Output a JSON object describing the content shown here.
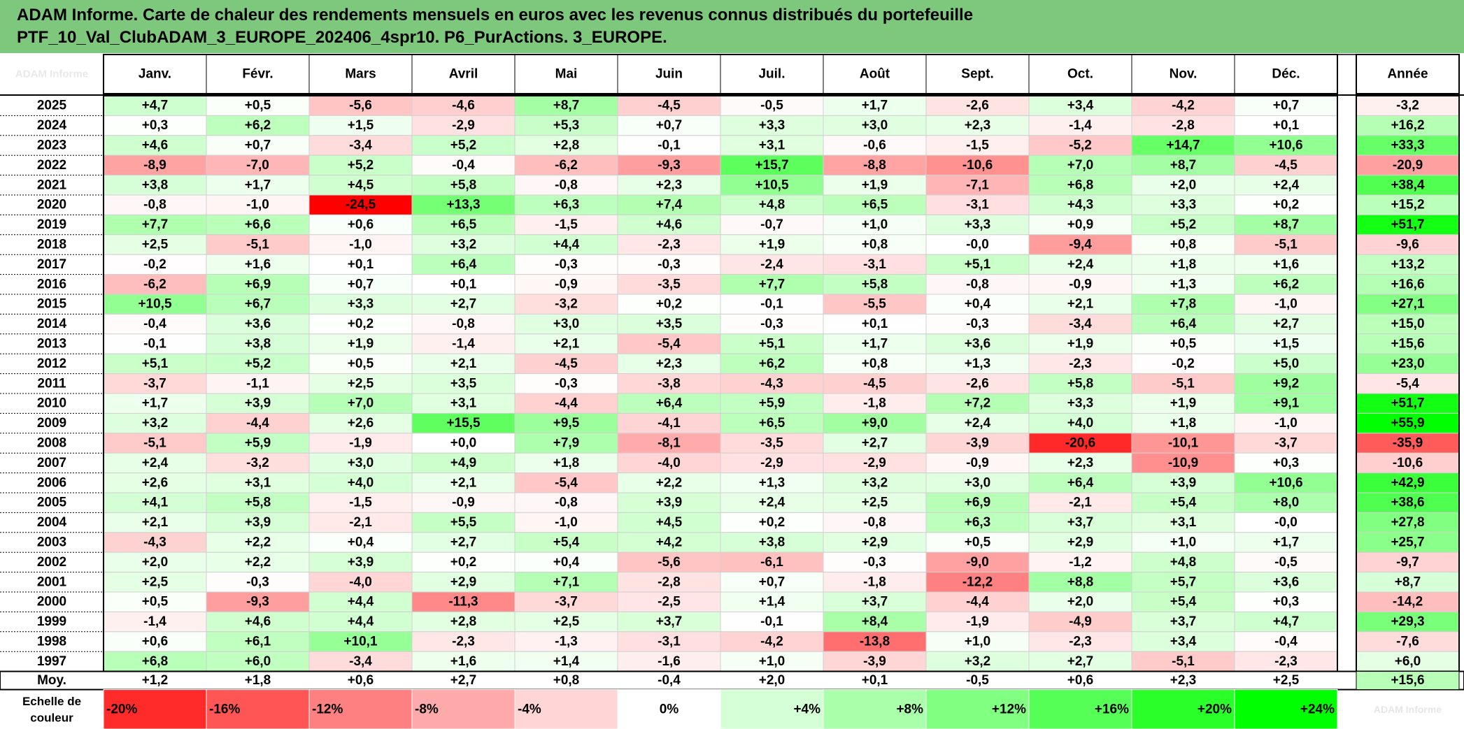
{
  "title": {
    "line1": "ADAM Informe. Carte de chaleur des rendements mensuels en euros avec les revenus connus distribués du portefeuille",
    "line2": "PTF_10_Val_ClubADAM_3_EUROPE_202406_4spr10. P6_PurActions. 3_EUROPE."
  },
  "watermark": "ADAM Informe",
  "colors": {
    "title_bg": "#7dc87d",
    "max_red": "#ff0000",
    "max_green": "#00ff00",
    "neutral": "#ffffff"
  },
  "chart_data": {
    "type": "heatmap",
    "months": [
      "Janv.",
      "Févr.",
      "Mars",
      "Avril",
      "Mai",
      "Juin",
      "Juil.",
      "Août",
      "Sept.",
      "Oct.",
      "Nov.",
      "Déc."
    ],
    "year_col_label": "Année",
    "rows": [
      {
        "year": "2025",
        "values": [
          "+4,7",
          "+0,5",
          "-5,6",
          "-4,6",
          "+8,7",
          "-4,5",
          "-0,5",
          "+1,7",
          "-2,6",
          "+3,4",
          "-4,2",
          "+0,7"
        ],
        "annual": "-3,2"
      },
      {
        "year": "2024",
        "values": [
          "+0,3",
          "+6,2",
          "+1,5",
          "-2,9",
          "+5,3",
          "+0,7",
          "+3,3",
          "+3,0",
          "+2,3",
          "-1,4",
          "-2,8",
          "+0,1"
        ],
        "annual": "+16,2"
      },
      {
        "year": "2023",
        "values": [
          "+4,6",
          "+0,7",
          "-3,4",
          "+5,2",
          "+2,8",
          "-0,1",
          "+3,1",
          "-0,6",
          "-1,5",
          "-5,2",
          "+14,7",
          "+10,6"
        ],
        "annual": "+33,3"
      },
      {
        "year": "2022",
        "values": [
          "-8,9",
          "-7,0",
          "+5,2",
          "-0,4",
          "-6,2",
          "-9,3",
          "+15,7",
          "-8,8",
          "-10,6",
          "+7,0",
          "+8,7",
          "-4,5"
        ],
        "annual": "-20,9"
      },
      {
        "year": "2021",
        "values": [
          "+3,8",
          "+1,7",
          "+4,5",
          "+5,8",
          "-0,8",
          "+2,3",
          "+10,5",
          "+1,9",
          "-7,1",
          "+6,8",
          "+2,0",
          "+2,4"
        ],
        "annual": "+38,4"
      },
      {
        "year": "2020",
        "values": [
          "-0,8",
          "-1,0",
          "-24,5",
          "+13,3",
          "+6,3",
          "+7,4",
          "+4,8",
          "+6,5",
          "-3,1",
          "+4,3",
          "+3,3",
          "+0,2"
        ],
        "annual": "+15,2"
      },
      {
        "year": "2019",
        "values": [
          "+7,7",
          "+6,6",
          "+0,6",
          "+6,5",
          "-1,5",
          "+4,6",
          "-0,7",
          "+1,0",
          "+3,3",
          "+0,9",
          "+5,2",
          "+8,7"
        ],
        "annual": "+51,7"
      },
      {
        "year": "2018",
        "values": [
          "+2,5",
          "-5,1",
          "-1,0",
          "+3,2",
          "+4,4",
          "-2,3",
          "+1,9",
          "+0,8",
          "-0,0",
          "-9,4",
          "+0,8",
          "-5,1"
        ],
        "annual": "-9,6"
      },
      {
        "year": "2017",
        "values": [
          "-0,2",
          "+1,6",
          "+0,1",
          "+6,4",
          "-0,3",
          "-0,3",
          "-2,4",
          "-3,1",
          "+5,1",
          "+2,4",
          "+1,8",
          "+1,6"
        ],
        "annual": "+13,2"
      },
      {
        "year": "2016",
        "values": [
          "-6,2",
          "+6,9",
          "+0,7",
          "+0,1",
          "-0,9",
          "-3,5",
          "+7,7",
          "+5,8",
          "-0,8",
          "-0,9",
          "+1,3",
          "+6,2"
        ],
        "annual": "+16,6"
      },
      {
        "year": "2015",
        "values": [
          "+10,5",
          "+6,7",
          "+3,3",
          "+2,7",
          "-3,2",
          "+0,2",
          "-0,1",
          "-5,5",
          "+0,4",
          "+2,1",
          "+7,8",
          "-1,0"
        ],
        "annual": "+27,1"
      },
      {
        "year": "2014",
        "values": [
          "-0,4",
          "+3,6",
          "+0,2",
          "-0,8",
          "+3,0",
          "+3,5",
          "-0,3",
          "+0,1",
          "-0,3",
          "-3,4",
          "+6,4",
          "+2,7"
        ],
        "annual": "+15,0"
      },
      {
        "year": "2013",
        "values": [
          "-0,1",
          "+3,8",
          "+1,9",
          "-1,4",
          "+2,1",
          "-5,4",
          "+5,1",
          "+1,7",
          "+3,6",
          "+1,9",
          "+0,5",
          "+1,5"
        ],
        "annual": "+15,6"
      },
      {
        "year": "2012",
        "values": [
          "+5,1",
          "+5,2",
          "+0,5",
          "+2,1",
          "-4,5",
          "+2,3",
          "+6,2",
          "+0,8",
          "+1,3",
          "-2,3",
          "-0,2",
          "+5,0"
        ],
        "annual": "+23,0"
      },
      {
        "year": "2011",
        "values": [
          "-3,7",
          "-1,1",
          "+2,5",
          "+3,5",
          "-0,3",
          "-3,8",
          "-4,3",
          "-4,5",
          "-2,6",
          "+5,8",
          "-5,1",
          "+9,2"
        ],
        "annual": "-5,4"
      },
      {
        "year": "2010",
        "values": [
          "+1,7",
          "+3,9",
          "+7,0",
          "+3,1",
          "-4,4",
          "+6,4",
          "+5,9",
          "-1,8",
          "+7,2",
          "+3,3",
          "+1,9",
          "+9,1"
        ],
        "annual": "+51,7"
      },
      {
        "year": "2009",
        "values": [
          "+3,2",
          "-4,4",
          "+2,6",
          "+15,5",
          "+9,5",
          "-4,1",
          "+6,5",
          "+9,0",
          "+2,4",
          "+4,0",
          "+1,8",
          "-1,0"
        ],
        "annual": "+55,9"
      },
      {
        "year": "2008",
        "values": [
          "-5,1",
          "+5,9",
          "-1,9",
          "+0,0",
          "+7,9",
          "-8,1",
          "-3,5",
          "+2,7",
          "-3,9",
          "-20,6",
          "-10,1",
          "-3,7"
        ],
        "annual": "-35,9"
      },
      {
        "year": "2007",
        "values": [
          "+2,4",
          "-3,2",
          "+3,0",
          "+4,9",
          "+1,8",
          "-4,0",
          "-2,9",
          "-2,9",
          "-0,9",
          "+2,3",
          "-10,9",
          "+0,3"
        ],
        "annual": "-10,6"
      },
      {
        "year": "2006",
        "values": [
          "+2,6",
          "+3,1",
          "+4,0",
          "+2,1",
          "-5,4",
          "+2,2",
          "+1,3",
          "+3,2",
          "+3,0",
          "+6,4",
          "+3,9",
          "+10,6"
        ],
        "annual": "+42,9"
      },
      {
        "year": "2005",
        "values": [
          "+4,1",
          "+5,8",
          "-1,5",
          "-0,9",
          "-0,8",
          "+3,9",
          "+2,4",
          "+2,5",
          "+6,9",
          "-2,1",
          "+5,4",
          "+8,0"
        ],
        "annual": "+38,6"
      },
      {
        "year": "2004",
        "values": [
          "+2,1",
          "+3,9",
          "-2,1",
          "+5,5",
          "-1,0",
          "+4,5",
          "+0,2",
          "-0,8",
          "+6,3",
          "+3,7",
          "+3,1",
          "-0,0"
        ],
        "annual": "+27,8"
      },
      {
        "year": "2003",
        "values": [
          "-4,3",
          "+2,2",
          "+0,4",
          "+2,7",
          "+5,4",
          "+4,2",
          "+3,8",
          "+2,9",
          "+0,5",
          "+2,9",
          "+1,0",
          "+1,7"
        ],
        "annual": "+25,7"
      },
      {
        "year": "2002",
        "values": [
          "+2,0",
          "+2,2",
          "+3,9",
          "+0,2",
          "+0,4",
          "-5,6",
          "-6,1",
          "-0,3",
          "-9,0",
          "-1,2",
          "+4,8",
          "-0,5"
        ],
        "annual": "-9,7"
      },
      {
        "year": "2001",
        "values": [
          "+2,5",
          "-0,3",
          "-4,0",
          "+2,9",
          "+7,1",
          "-2,8",
          "+0,7",
          "-1,8",
          "-12,2",
          "+8,8",
          "+5,7",
          "+3,6"
        ],
        "annual": "+8,7"
      },
      {
        "year": "2000",
        "values": [
          "+0,5",
          "-9,3",
          "+4,4",
          "-11,3",
          "-3,7",
          "-2,5",
          "+1,4",
          "+3,7",
          "-4,4",
          "+2,0",
          "+5,4",
          "+0,3"
        ],
        "annual": "-14,2"
      },
      {
        "year": "1999",
        "values": [
          "-1,4",
          "+4,6",
          "+4,4",
          "+2,8",
          "+2,5",
          "+3,7",
          "-0,1",
          "+8,4",
          "-1,9",
          "-4,9",
          "+3,7",
          "+4,7"
        ],
        "annual": "+29,3"
      },
      {
        "year": "1998",
        "values": [
          "+0,6",
          "+6,1",
          "+10,1",
          "-2,3",
          "-1,3",
          "-3,1",
          "-4,2",
          "-13,8",
          "+1,0",
          "-2,3",
          "+3,4",
          "-0,4"
        ],
        "annual": "-7,6"
      },
      {
        "year": "1997",
        "values": [
          "+6,8",
          "+6,0",
          "-3,4",
          "+1,6",
          "+1,4",
          "-1,6",
          "+1,0",
          "-3,9",
          "+3,2",
          "+2,7",
          "-5,1",
          "-2,3"
        ],
        "annual": "+6,0"
      }
    ],
    "average": {
      "label": "Moy.",
      "values": [
        "+1,2",
        "+1,8",
        "+0,6",
        "+2,7",
        "+0,8",
        "-0,4",
        "+2,0",
        "+0,1",
        "-0,5",
        "+0,6",
        "+2,3",
        "+2,5"
      ],
      "annual": "+15,6"
    },
    "scale": {
      "label_line1": "Echelle de",
      "label_line2": "couleur",
      "stops": [
        "-20%",
        "-16%",
        "-12%",
        "-8%",
        "-4%",
        "0%",
        "+4%",
        "+8%",
        "+12%",
        "+16%",
        "+20%",
        "+24%"
      ],
      "stop_values": [
        -20,
        -16,
        -12,
        -8,
        -4,
        0,
        4,
        8,
        12,
        16,
        20,
        24
      ]
    }
  }
}
